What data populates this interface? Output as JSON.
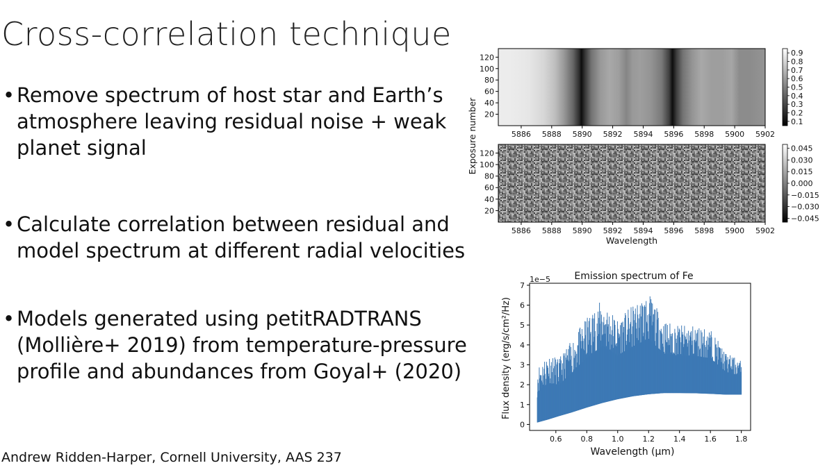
{
  "slide": {
    "title": "Cross-correlation technique",
    "bullets": [
      {
        "lines": [
          "Remove spectrum of host star and Earth’s",
          "atmosphere leaving residual noise + weak",
          "planet signal"
        ]
      },
      {
        "lines": [
          "Calculate correlation between residual and",
          "model spectrum at different radial velocities"
        ]
      },
      {
        "lines": [
          "Models generated using petitRADTRANS",
          "(Mollière+ 2019) from temperature-pressure",
          "profile and abundances from Goyal+ (2020)"
        ]
      }
    ],
    "bullet_symbol": "•",
    "footer": "Andrew Ridden-Harper, Cornell University, AAS 237"
  },
  "chart_data": [
    {
      "type": "heatmap",
      "panel": "top",
      "xlabel": "",
      "ylabel": "Exposure number",
      "xlim": [
        5884.5,
        5902
      ],
      "ylim": [
        0,
        135
      ],
      "xticks": [
        "5886",
        "5888",
        "5890",
        "5892",
        "5894",
        "5896",
        "5898",
        "5900",
        "5902"
      ],
      "yticks": [
        "20",
        "40",
        "60",
        "80",
        "100",
        "120"
      ],
      "colorbar_ticks": [
        "0.9",
        "0.8",
        "0.7",
        "0.6",
        "0.5",
        "0.4",
        "0.3",
        "0.2",
        "0.1"
      ],
      "colorbar_range": [
        0.05,
        0.95
      ],
      "colormap": "gray",
      "spectrum": {
        "wavelength": [
          5884.5,
          5885.5,
          5886.5,
          5887.5,
          5888.2,
          5888.8,
          5889.4,
          5889.8,
          5889.95,
          5890.2,
          5890.6,
          5891.2,
          5891.8,
          5892.4,
          5892.9,
          5893.3,
          5893.8,
          5894.5,
          5895.2,
          5895.7,
          5895.92,
          5896.2,
          5896.6,
          5897.2,
          5897.8,
          5898.5,
          5899.2,
          5899.8,
          5900.3,
          5901,
          5902
        ],
        "value": [
          0.93,
          0.92,
          0.9,
          0.84,
          0.75,
          0.6,
          0.4,
          0.18,
          0.05,
          0.22,
          0.45,
          0.6,
          0.66,
          0.62,
          0.52,
          0.6,
          0.62,
          0.58,
          0.48,
          0.25,
          0.05,
          0.25,
          0.45,
          0.58,
          0.66,
          0.62,
          0.62,
          0.65,
          0.55,
          0.55,
          0.58
        ]
      }
    },
    {
      "type": "heatmap",
      "panel": "bottom",
      "xlabel": "Wavelength",
      "ylabel": "",
      "xlim": [
        5884.5,
        5902
      ],
      "ylim": [
        0,
        135
      ],
      "xticks": [
        "5886",
        "5888",
        "5890",
        "5892",
        "5894",
        "5896",
        "5898",
        "5900",
        "5902"
      ],
      "yticks": [
        "20",
        "40",
        "60",
        "80",
        "100",
        "120"
      ],
      "colorbar_ticks": [
        "0.045",
        "0.030",
        "0.015",
        "0.000",
        "−0.015",
        "−0.030",
        "−0.045"
      ],
      "colorbar_range": [
        -0.05,
        0.05
      ],
      "colormap": "gray",
      "content": "random residual noise"
    },
    {
      "type": "area",
      "title": "Emission spectrum of Fe",
      "xlabel": "Wavelength (µm)",
      "ylabel": "Flux density (erg/s/cm²/Hz)",
      "offset_label": "1e−5",
      "xlim": [
        0.43,
        1.86
      ],
      "ylim": [
        -0.3,
        7.1
      ],
      "xticks": [
        "0.6",
        "0.8",
        "1.0",
        "1.2",
        "1.4",
        "1.6",
        "1.8"
      ],
      "yticks": [
        "0",
        "1",
        "2",
        "3",
        "4",
        "5",
        "6",
        "7"
      ],
      "color": "#3d79b5",
      "series": [
        {
          "x": [
            0.48,
            0.55,
            0.62,
            0.7,
            0.8,
            0.9,
            1.0,
            1.1,
            1.2,
            1.3,
            1.4,
            1.5,
            1.6,
            1.7,
            1.8
          ],
          "lower": [
            0.1,
            0.25,
            0.42,
            0.6,
            0.85,
            1.08,
            1.27,
            1.42,
            1.52,
            1.58,
            1.58,
            1.57,
            1.54,
            1.5,
            1.5
          ],
          "upper": [
            2.9,
            3.6,
            3.3,
            4.2,
            5.4,
            6.3,
            5.3,
            6.0,
            6.6,
            5.2,
            5.0,
            5.0,
            4.8,
            3.6,
            3.2
          ]
        }
      ]
    }
  ]
}
